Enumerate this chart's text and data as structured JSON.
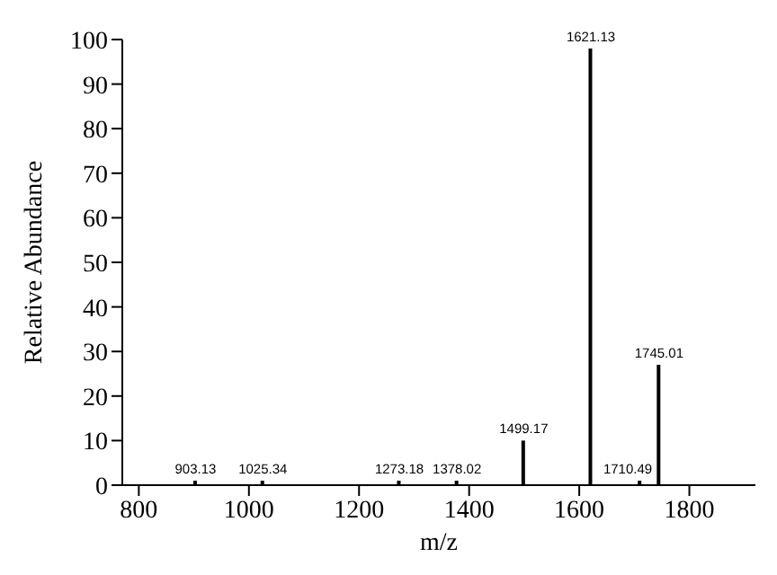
{
  "chart_data": {
    "type": "bar",
    "xlabel": "m/z",
    "ylabel": "Relative Abundance",
    "x": [
      903.13,
      1025.34,
      1273.18,
      1378.02,
      1499.17,
      1621.13,
      1710.49,
      1745.01
    ],
    "values": [
      1,
      1,
      1,
      1,
      10,
      98,
      1,
      27
    ],
    "annotations": [
      {
        "text": "903.13",
        "x": 903.13,
        "y": 1
      },
      {
        "text": "1025.34",
        "x": 1025.34,
        "y": 1
      },
      {
        "text": "1273.18",
        "x": 1273.18,
        "y": 1
      },
      {
        "text": "1378.02",
        "x": 1378.02,
        "y": 1
      },
      {
        "text": "1499.17",
        "x": 1499.17,
        "y": 10
      },
      {
        "text": "1621.13",
        "x": 1621.13,
        "y": 98
      },
      {
        "text": "1710.49",
        "x": 1710.49,
        "y": 1
      },
      {
        "text": "1745.01",
        "x": 1745.01,
        "y": 27
      }
    ],
    "color": "#000000",
    "xlim": [
      770,
      1920
    ],
    "xticks": [
      800,
      1000,
      1200,
      1400,
      1600,
      1800
    ],
    "ylim": [
      0,
      100
    ],
    "yticks": [
      0,
      10,
      20,
      30,
      40,
      50,
      60,
      70,
      80,
      90,
      100
    ]
  }
}
